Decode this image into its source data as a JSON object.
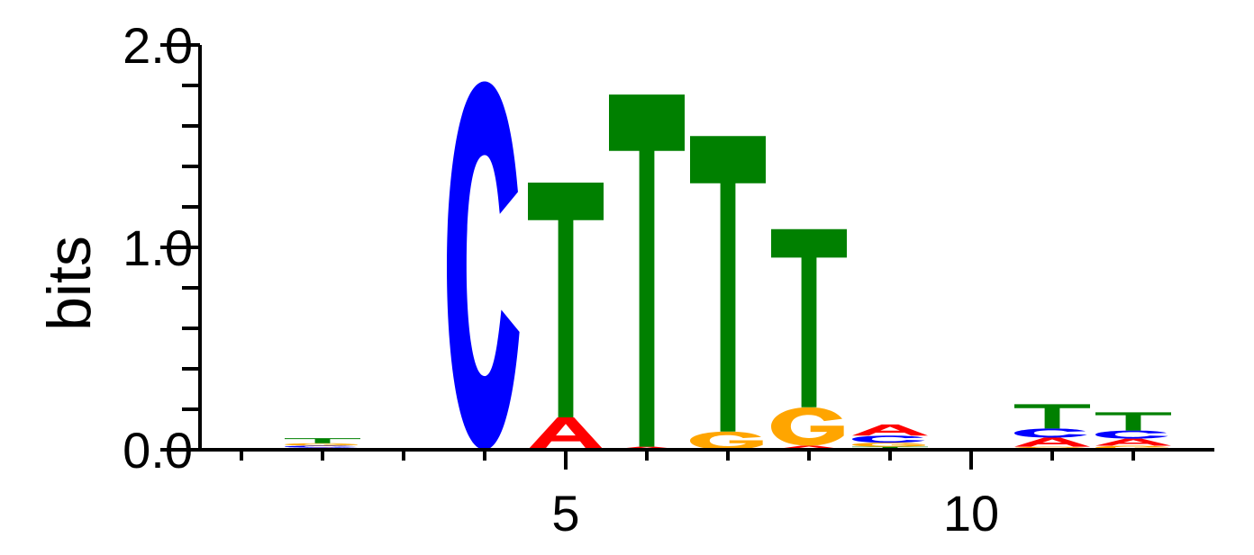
{
  "chart_data": {
    "type": "sequence-logo",
    "title": "",
    "xlabel": "",
    "ylabel": "bits",
    "ylim": [
      0,
      2
    ],
    "y_ticks": [
      "0.0",
      "1.0",
      "2.0"
    ],
    "x_ticks": [
      "5",
      "10"
    ],
    "positions": [
      1,
      2,
      3,
      4,
      5,
      6,
      7,
      8,
      9,
      10,
      11,
      12
    ],
    "colors": {
      "A": "#ff0000",
      "C": "#0000ff",
      "G": "#ffa500",
      "T": "#008000"
    },
    "stacks": [
      [
        {
          "base": "A",
          "bits": 0.006
        }
      ],
      [
        {
          "base": "A",
          "bits": 0.01
        },
        {
          "base": "C",
          "bits": 0.01
        },
        {
          "base": "G",
          "bits": 0.012
        },
        {
          "base": "T",
          "bits": 0.025
        }
      ],
      [],
      [
        {
          "base": "C",
          "bits": 1.82
        }
      ],
      [
        {
          "base": "A",
          "bits": 0.16
        },
        {
          "base": "T",
          "bits": 1.16
        }
      ],
      [
        {
          "base": "A",
          "bits": 0.015
        },
        {
          "base": "T",
          "bits": 1.74
        }
      ],
      [
        {
          "base": "G",
          "bits": 0.09
        },
        {
          "base": "T",
          "bits": 1.46
        }
      ],
      [
        {
          "base": "A",
          "bits": 0.02
        },
        {
          "base": "G",
          "bits": 0.19
        },
        {
          "base": "T",
          "bits": 0.88
        }
      ],
      [
        {
          "base": "T",
          "bits": 0.015
        },
        {
          "base": "G",
          "bits": 0.02
        },
        {
          "base": "C",
          "bits": 0.035
        },
        {
          "base": "A",
          "bits": 0.055
        }
      ],
      [
        {
          "base": "C",
          "bits": 0.008
        }
      ],
      [
        {
          "base": "G",
          "bits": 0.015
        },
        {
          "base": "A",
          "bits": 0.045
        },
        {
          "base": "C",
          "bits": 0.045
        },
        {
          "base": "T",
          "bits": 0.12
        }
      ],
      [
        {
          "base": "G",
          "bits": 0.02
        },
        {
          "base": "A",
          "bits": 0.035
        },
        {
          "base": "C",
          "bits": 0.04
        },
        {
          "base": "T",
          "bits": 0.09
        }
      ]
    ]
  }
}
